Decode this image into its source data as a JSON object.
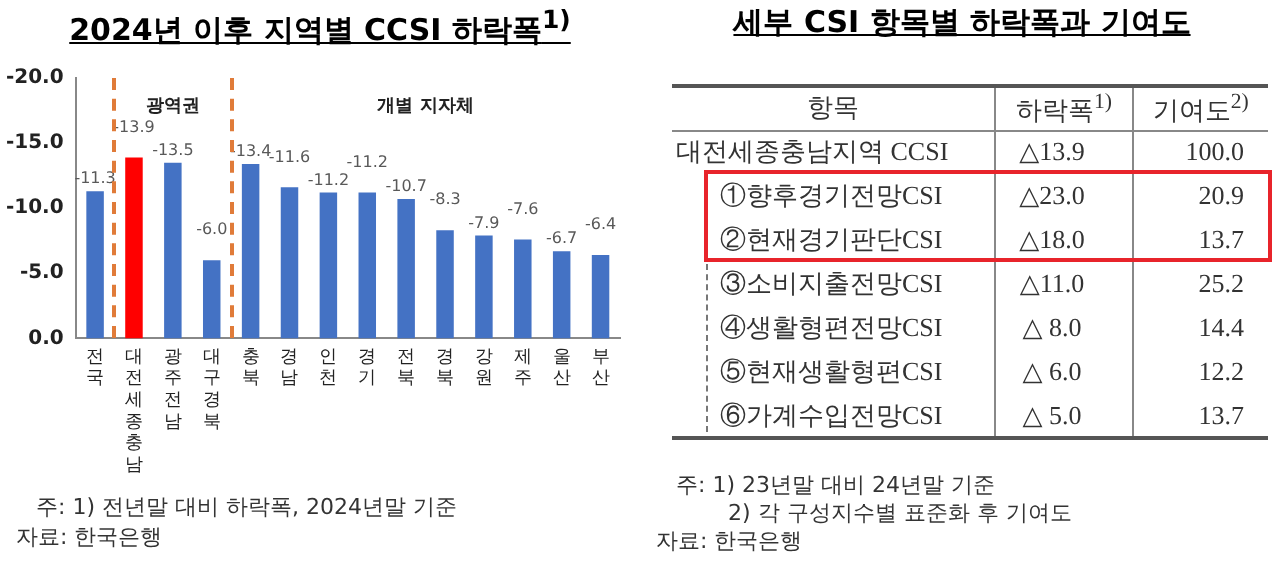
{
  "chart_data": [
    {
      "type": "bar",
      "title": "2024년 이후 지역별 CCSI 하락폭$^{1)}$",
      "categories": [
        "전국",
        "대전세종충남",
        "광주전남",
        "대구경북",
        "충북",
        "경남",
        "인천",
        "경기",
        "전북",
        "경북",
        "강원",
        "제주",
        "울산",
        "부산"
      ],
      "values": [
        -11.3,
        -13.9,
        -13.5,
        -6.0,
        -13.4,
        -11.6,
        -11.2,
        -11.2,
        -10.7,
        -8.3,
        -7.9,
        -7.6,
        -6.7,
        -6.4
      ],
      "colors": [
        "#4472c4",
        "#ff0000",
        "#4472c4",
        "#4472c4",
        "#4472c4",
        "#4472c4",
        "#4472c4",
        "#4472c4",
        "#4472c4",
        "#4472c4",
        "#4472c4",
        "#4472c4",
        "#4472c4",
        "#4472c4"
      ],
      "value_labels": [
        "-11.3",
        "-13.9",
        "-13.5",
        "-6.0",
        "-13.4",
        "-11.6",
        "-11.2",
        "-11.2",
        "-10.7",
        "-8.3",
        "-7.9",
        "-7.6",
        "-6.7",
        "-6.4"
      ],
      "ylim": [
        0,
        -20
      ],
      "yticks": [
        {
          "value": 0,
          "label": "0.0"
        },
        {
          "value": -5,
          "label": "-5.0"
        },
        {
          "value": -10,
          "label": "-10.0"
        },
        {
          "value": -15,
          "label": "-15.0"
        },
        {
          "value": -20,
          "label": "-20.0"
        }
      ],
      "annotations": [
        "광역권",
        "개별 지자체",
        "주: 1) 전년말 대비 하락폭, 2024년말 기준",
        "자료: 한국은행"
      ]
    },
    {
      "type": "other",
      "title": "세부 CSI 항목별 하락폭과 기여도",
      "categories": [
        "항목",
        "하락폭$^{1)}$",
        "기여도$^{2)}$"
      ],
      "y_categories": [
        "대전세종충남지역 CCSI",
        "①향후경기전망CSI",
        "②현재경기판단CSI",
        "③소비지출전망CSI",
        "④생활형편전망CSI",
        "⑤현재생활형편CSI",
        "⑥가계수입전망CSI"
      ],
      "cell_labels": [
        [
          "△13.9",
          "100.0"
        ],
        [
          "△23.0",
          "20.9"
        ],
        [
          "△18.0",
          "13.7"
        ],
        [
          "△11.0",
          "25.2"
        ],
        [
          "△ 8.0",
          "14.4"
        ],
        [
          "△ 6.0",
          "12.2"
        ],
        [
          "△ 5.0",
          "13.7"
        ]
      ],
      "annotations": [
        "주: 1) 23년말 대비 24년말 기준",
        "2) 각 구성지수별 표준화 후 기여도",
        "자료: 한국은행"
      ]
    }
  ]
}
